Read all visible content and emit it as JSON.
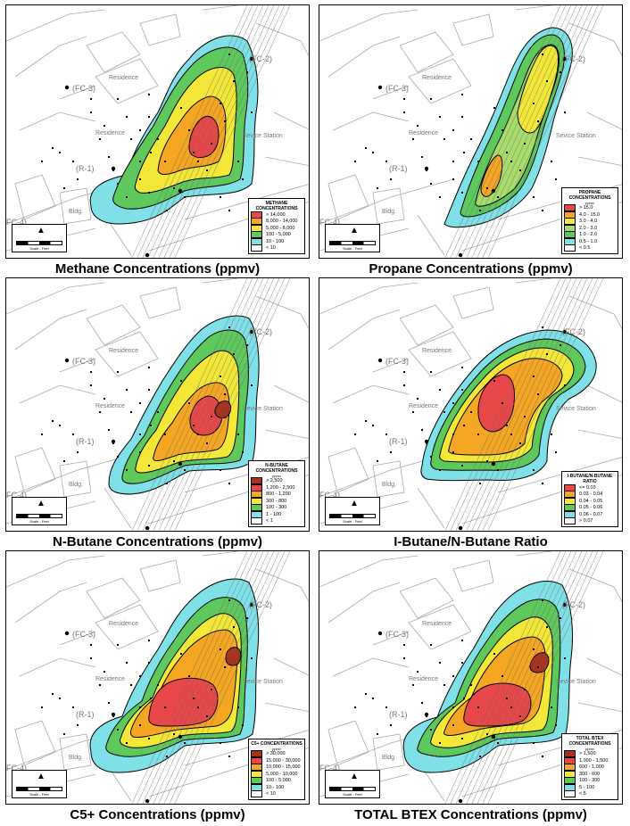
{
  "panels": [
    {
      "id": "methane",
      "caption": "Methane Concentrations (ppmv)",
      "legend_title": "METHANE CONCENTRATIONS",
      "legend_unit": "",
      "legend": [
        {
          "label": "> 14,000",
          "color": "#e8474a"
        },
        {
          "label": "8,000 - 14,000",
          "color": "#f5a623"
        },
        {
          "label": "5,000 - 8,000",
          "color": "#f3e838"
        },
        {
          "label": "100 - 5,000",
          "color": "#5ec85c"
        },
        {
          "label": "10 - 100",
          "color": "#7fe0e8"
        },
        {
          "label": "< 10",
          "color": "#ffffff"
        }
      ]
    },
    {
      "id": "propane",
      "caption": "Propane Concentrations (ppmv)",
      "legend_title": "PROPANE CONCENTRATIONS",
      "legend_unit": "ppmv",
      "legend": [
        {
          "label": "> 15.0",
          "color": "#e8474a"
        },
        {
          "label": "4.0 - 15.0",
          "color": "#f5a623"
        },
        {
          "label": "3.0 - 4.0",
          "color": "#f3e838"
        },
        {
          "label": "2.0 - 3.0",
          "color": "#a8dc6a"
        },
        {
          "label": "1.0 - 2.0",
          "color": "#5ec85c"
        },
        {
          "label": "0.5 - 1.0",
          "color": "#7fe0e8"
        },
        {
          "label": "< 0.5",
          "color": "#ffffff"
        }
      ]
    },
    {
      "id": "nbutane",
      "caption": "N-Butane Concentrations (ppmv)",
      "legend_title": "N-BUTANE CONCENTRATIONS",
      "legend_unit": "ppmv",
      "legend": [
        {
          "label": "> 2,500",
          "color": "#a8321e"
        },
        {
          "label": "1,200 - 2,500",
          "color": "#e8474a"
        },
        {
          "label": "800 - 1,200",
          "color": "#f5a623"
        },
        {
          "label": "300 - 800",
          "color": "#f3e838"
        },
        {
          "label": "100 - 300",
          "color": "#5ec85c"
        },
        {
          "label": "1 - 100",
          "color": "#7fe0e8"
        },
        {
          "label": "< 1",
          "color": "#ffffff"
        }
      ]
    },
    {
      "id": "ratio",
      "caption": "I-Butane/N-Butane Ratio",
      "legend_title": "I-BUTANE/N-BUTANE RATIO",
      "legend_unit": "",
      "legend": [
        {
          "label": "<= 0.03",
          "color": "#e8474a"
        },
        {
          "label": "0.03 - 0.04",
          "color": "#f5a623"
        },
        {
          "label": "0.04 - 0.05",
          "color": "#f3e838"
        },
        {
          "label": "0.05 - 0.06",
          "color": "#5ec85c"
        },
        {
          "label": "0.06 - 0.07",
          "color": "#7fe0e8"
        },
        {
          "label": "> 0.07",
          "color": "#ffffff"
        }
      ]
    },
    {
      "id": "c5",
      "caption": "C5+ Concentrations (ppmv)",
      "legend_title": "C5+ CONCENTRATIONS",
      "legend_unit": "ppmv",
      "legend": [
        {
          "label": "> 30,000",
          "color": "#a8321e"
        },
        {
          "label": "15,000 - 30,000",
          "color": "#e8474a"
        },
        {
          "label": "10,000 - 15,000",
          "color": "#f5a623"
        },
        {
          "label": "5,000 - 10,000",
          "color": "#f3e838"
        },
        {
          "label": "100 - 5,000",
          "color": "#5ec85c"
        },
        {
          "label": "10 - 100",
          "color": "#7fe0e8"
        },
        {
          "label": "< 10",
          "color": "#ffffff"
        }
      ]
    },
    {
      "id": "btex",
      "caption": "TOTAL BTEX Concentrations (ppmv)",
      "legend_title": "TOTAL BTEX CONCENTRATIONS",
      "legend_unit": "ppmv",
      "legend": [
        {
          "label": "> 1,500",
          "color": "#a8321e"
        },
        {
          "label": "1,000 - 1,500",
          "color": "#e8474a"
        },
        {
          "label": "600 - 1,000",
          "color": "#f5a623"
        },
        {
          "label": "300 - 600",
          "color": "#f3e838"
        },
        {
          "label": "100 - 300",
          "color": "#5ec85c"
        },
        {
          "label": "5 - 100",
          "color": "#7fe0e8"
        },
        {
          "label": "< 5",
          "color": "#ffffff"
        }
      ]
    }
  ],
  "map_labels": {
    "residence": "Residence",
    "station": "Sevice Station",
    "bldg": "Bldg.",
    "fc2": "(FC-2)",
    "fc3": "(FC-3)",
    "fc4": "FC-4)",
    "r1": "(R-1)",
    "scale": "Scale - Feet"
  }
}
